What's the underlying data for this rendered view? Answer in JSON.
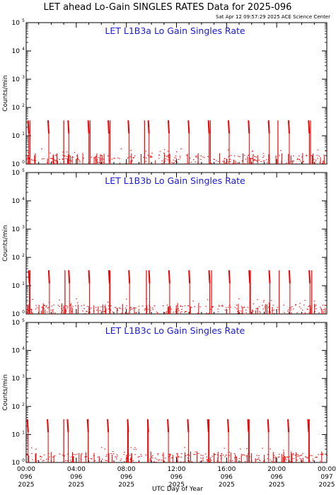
{
  "header": {
    "title": "LET ahead Lo-Gain SINGLES RATES Data for 2025-096",
    "timestamp": "Sat Apr 12 09:57:29 2025 ACE Science Center"
  },
  "colors": {
    "data": "#ee0000",
    "panel_title": "#1a1ad6",
    "axis": "#000000"
  },
  "chart_data": [
    {
      "type": "line",
      "title": "LET L1B3a Lo Gain Singles Rate",
      "ylabel": "Counts/min",
      "xlabel": "UTC Day of Year",
      "yscale": "log",
      "ylim": [
        1,
        100000
      ],
      "xlim_hours": [
        0,
        24
      ],
      "ytick_labels": [
        {
          "base": "10",
          "exp": "0"
        },
        {
          "base": "10",
          "exp": "1"
        },
        {
          "base": "10",
          "exp": "2"
        },
        {
          "base": "10",
          "exp": "3"
        },
        {
          "base": "10",
          "exp": "4"
        },
        {
          "base": "10",
          "exp": "5"
        }
      ],
      "burst_peak": 35,
      "burst_low": 12,
      "burst_hours": [
        0.15,
        1.75,
        3.35,
        4.95,
        6.55,
        8.15,
        9.75,
        11.35,
        12.95,
        14.55,
        16.15,
        17.75,
        19.35,
        20.95,
        22.55
      ],
      "burst_dips": [
        0.3,
        3.0,
        5.1,
        6.7,
        9.45,
        14.7,
        20.1,
        22.7
      ]
    },
    {
      "type": "line",
      "title": "LET L1B3b Lo Gain Singles Rate",
      "ylabel": "Counts/min",
      "xlabel": "UTC Day of Year",
      "yscale": "log",
      "ylim": [
        1,
        100000
      ],
      "xlim_hours": [
        0,
        24
      ],
      "ytick_labels": [
        {
          "base": "10",
          "exp": "0"
        },
        {
          "base": "10",
          "exp": "1"
        },
        {
          "base": "10",
          "exp": "2"
        },
        {
          "base": "10",
          "exp": "3"
        },
        {
          "base": "10",
          "exp": "4"
        },
        {
          "base": "10",
          "exp": "5"
        }
      ],
      "burst_peak": 35,
      "burst_low": 12,
      "burst_hours": [
        0.2,
        1.8,
        3.4,
        5.0,
        6.6,
        8.2,
        9.8,
        11.4,
        13.0,
        14.6,
        16.2,
        17.8,
        19.4,
        21.0,
        22.6
      ],
      "burst_dips": [
        0.3,
        3.1,
        6.7,
        9.6,
        14.8,
        17.9,
        20.2,
        22.8
      ]
    },
    {
      "type": "line",
      "title": "LET L1B3c Lo Gain Singles Rate",
      "ylabel": "Counts/min",
      "xlabel": "UTC Day of Year",
      "yscale": "log",
      "ylim": [
        1,
        100000
      ],
      "xlim_hours": [
        0,
        24
      ],
      "ytick_labels": [
        {
          "base": "10",
          "exp": "0"
        },
        {
          "base": "10",
          "exp": "1"
        },
        {
          "base": "10",
          "exp": "2"
        },
        {
          "base": "10",
          "exp": "3"
        },
        {
          "base": "10",
          "exp": "4"
        },
        {
          "base": "10",
          "exp": "5"
        }
      ],
      "burst_peak": 35,
      "burst_low": 12,
      "burst_hours": [
        0.1,
        1.7,
        3.3,
        4.9,
        6.5,
        8.1,
        9.7,
        11.3,
        12.9,
        14.5,
        16.1,
        17.7,
        19.3,
        20.9,
        22.5
      ],
      "burst_dips": [
        3.0,
        4.95,
        8.1,
        9.7,
        14.6,
        17.8,
        22.6
      ]
    }
  ],
  "x_axis": {
    "label": "UTC Day of Year",
    "ticks": [
      {
        "time": "00:00",
        "doy": "096",
        "year": "2025",
        "hour": 0
      },
      {
        "time": "04:00",
        "doy": "096",
        "year": "2025",
        "hour": 4
      },
      {
        "time": "08:00",
        "doy": "096",
        "year": "2025",
        "hour": 8
      },
      {
        "time": "12:00",
        "doy": "096",
        "year": "2025",
        "hour": 12
      },
      {
        "time": "16:00",
        "doy": "096",
        "year": "2025",
        "hour": 16
      },
      {
        "time": "20:00",
        "doy": "096",
        "year": "2025",
        "hour": 20
      },
      {
        "time": "00:00",
        "doy": "097",
        "year": "2025",
        "hour": 24
      }
    ]
  }
}
